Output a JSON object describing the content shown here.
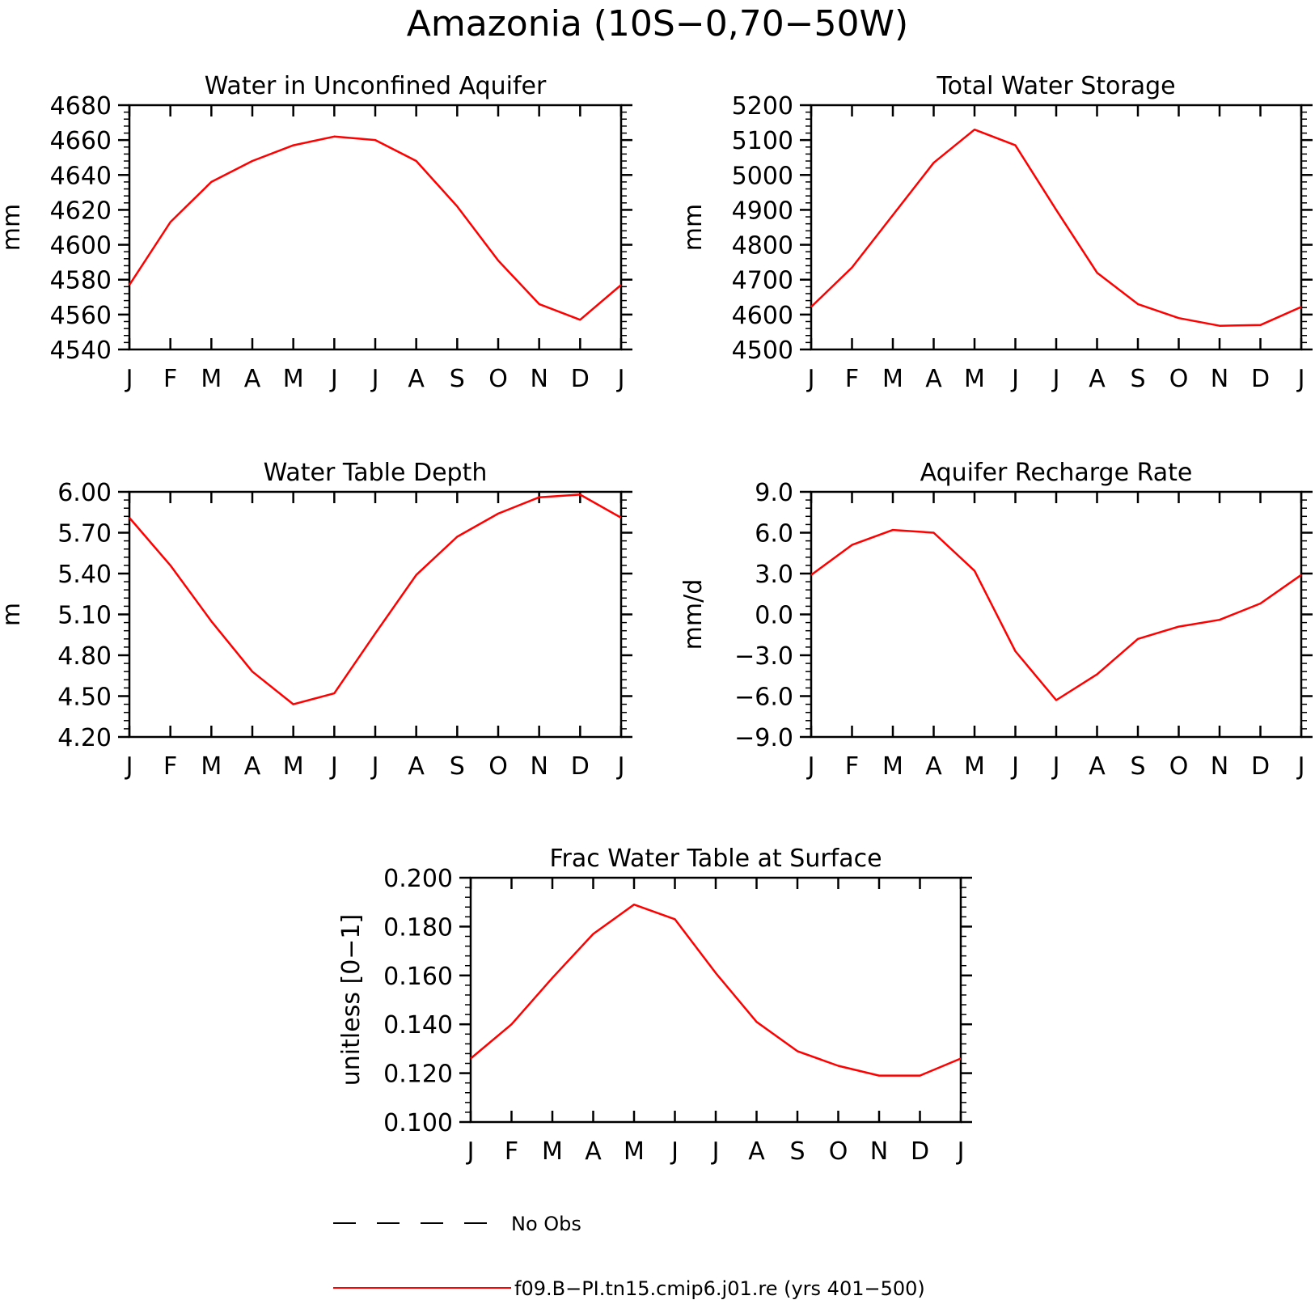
{
  "figure": {
    "title": "Amazonia (10S−0,70−50W)"
  },
  "legend": {
    "entries": [
      {
        "label": "No Obs",
        "style": "dashed",
        "color": "#000000"
      },
      {
        "label": "f09.B−PI.tn15.cmip6.j01.re (yrs 401−500)",
        "style": "solid",
        "color": "#ff0000"
      }
    ]
  },
  "chart_data": [
    {
      "type": "line",
      "title": "Water in Unconfined Aquifer",
      "ylabel": "mm",
      "xlabel": "",
      "categories": [
        "J",
        "F",
        "M",
        "A",
        "M",
        "J",
        "J",
        "A",
        "S",
        "O",
        "N",
        "D",
        "J"
      ],
      "ylim": [
        4540,
        4680
      ],
      "yticks": [
        4540,
        4560,
        4580,
        4600,
        4620,
        4640,
        4660,
        4680
      ],
      "ytick_labels": [
        "4540",
        "4560",
        "4580",
        "4600",
        "4620",
        "4640",
        "4660",
        "4680"
      ],
      "series": [
        {
          "color": "#ff0000",
          "values": [
            4577,
            4613,
            4636,
            4648,
            4657,
            4662,
            4660,
            4648,
            4622,
            4591,
            4566,
            4557,
            4577
          ]
        }
      ]
    },
    {
      "type": "line",
      "title": "Total Water Storage",
      "ylabel": "mm",
      "xlabel": "",
      "categories": [
        "J",
        "F",
        "M",
        "A",
        "M",
        "J",
        "J",
        "A",
        "S",
        "O",
        "N",
        "D",
        "J"
      ],
      "ylim": [
        4500,
        5200
      ],
      "yticks": [
        4500,
        4600,
        4700,
        4800,
        4900,
        5000,
        5100,
        5200
      ],
      "ytick_labels": [
        "4500",
        "4600",
        "4700",
        "4800",
        "4900",
        "5000",
        "5100",
        "5200"
      ],
      "series": [
        {
          "color": "#ff0000",
          "values": [
            4622,
            4735,
            4885,
            5035,
            5130,
            5085,
            4900,
            4720,
            4630,
            4590,
            4568,
            4570,
            4622
          ]
        }
      ]
    },
    {
      "type": "line",
      "title": "Water Table Depth",
      "ylabel": "m",
      "xlabel": "",
      "categories": [
        "J",
        "F",
        "M",
        "A",
        "M",
        "J",
        "J",
        "A",
        "S",
        "O",
        "N",
        "D",
        "J"
      ],
      "ylim": [
        4.2,
        6.0
      ],
      "yticks": [
        4.2,
        4.5,
        4.8,
        5.1,
        5.4,
        5.7,
        6.0
      ],
      "ytick_labels": [
        "4.20",
        "4.50",
        "4.80",
        "5.10",
        "5.40",
        "5.70",
        "6.00"
      ],
      "series": [
        {
          "color": "#ff0000",
          "values": [
            5.81,
            5.46,
            5.05,
            4.68,
            4.44,
            4.52,
            4.96,
            5.39,
            5.67,
            5.84,
            5.96,
            5.98,
            5.81
          ]
        }
      ]
    },
    {
      "type": "line",
      "title": "Aquifer Recharge Rate",
      "ylabel": "mm/d",
      "xlabel": "",
      "categories": [
        "J",
        "F",
        "M",
        "A",
        "M",
        "J",
        "J",
        "A",
        "S",
        "O",
        "N",
        "D",
        "J"
      ],
      "ylim": [
        -9,
        9
      ],
      "yticks": [
        -9,
        -6,
        -3,
        0,
        3,
        6,
        9
      ],
      "ytick_labels": [
        "−9.0",
        "−6.0",
        "−3.0",
        "0.0",
        "3.0",
        "6.0",
        "9.0"
      ],
      "series": [
        {
          "color": "#ff0000",
          "values": [
            2.9,
            5.1,
            6.2,
            6.0,
            3.2,
            -2.7,
            -6.3,
            -4.4,
            -1.8,
            -0.9,
            -0.4,
            0.8,
            2.9
          ]
        }
      ]
    },
    {
      "type": "line",
      "title": "Frac Water Table at Surface",
      "ylabel": "unitless [0−1]",
      "xlabel": "",
      "categories": [
        "J",
        "F",
        "M",
        "A",
        "M",
        "J",
        "J",
        "A",
        "S",
        "O",
        "N",
        "D",
        "J"
      ],
      "ylim": [
        0.1,
        0.2
      ],
      "yticks": [
        0.1,
        0.12,
        0.14,
        0.16,
        0.18,
        0.2
      ],
      "ytick_labels": [
        "0.100",
        "0.120",
        "0.140",
        "0.160",
        "0.180",
        "0.200"
      ],
      "series": [
        {
          "color": "#ff0000",
          "values": [
            0.126,
            0.14,
            0.159,
            0.177,
            0.189,
            0.183,
            0.161,
            0.141,
            0.129,
            0.123,
            0.119,
            0.119,
            0.126
          ]
        }
      ]
    }
  ]
}
